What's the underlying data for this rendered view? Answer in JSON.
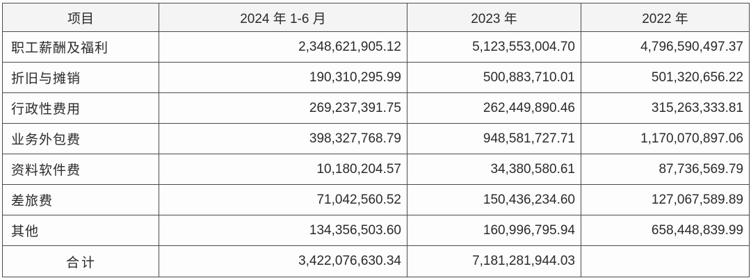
{
  "table": {
    "headers": [
      "项目",
      "2024 年 1-6 月",
      "2023 年",
      "2022 年"
    ],
    "rows": [
      {
        "item": "职工薪酬及福利",
        "y2024h1": "2,348,621,905.12",
        "y2023": "5,123,553,004.70",
        "y2022": "4,796,590,497.37"
      },
      {
        "item": "折旧与摊销",
        "y2024h1": "190,310,295.99",
        "y2023": "500,883,710.01",
        "y2022": "501,320,656.22"
      },
      {
        "item": "行政性费用",
        "y2024h1": "269,237,391.75",
        "y2023": "262,449,890.46",
        "y2022": "315,263,333.81"
      },
      {
        "item": "业务外包费",
        "y2024h1": "398,327,768.79",
        "y2023": "948,581,727.71",
        "y2022": "1,170,070,897.06"
      },
      {
        "item": "资料软件费",
        "y2024h1": "10,180,204.57",
        "y2023": "34,380,580.61",
        "y2022": "87,736,569.79"
      },
      {
        "item": "差旅费",
        "y2024h1": "71,042,560.52",
        "y2023": "150,436,234.60",
        "y2022": "127,067,589.89"
      },
      {
        "item": "其他",
        "y2024h1": "134,356,503.60",
        "y2023": "160,996,795.94",
        "y2022": "658,448,839.99"
      }
    ],
    "total": {
      "item": "合计",
      "y2024h1": "3,422,076,630.34",
      "y2023": "7,181,281,944.03",
      "y2022": ""
    }
  }
}
